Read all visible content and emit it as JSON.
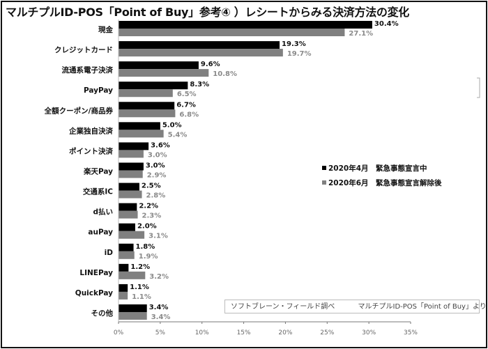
{
  "title": "マルチプルID-POS「Point of Buy」参考④ ）レシートからみる決済方法の変化",
  "source": {
    "left": "ソフトブレーン・フィールド調べ",
    "right": "マルチプルID-POS「Point of Buy」より"
  },
  "chart_data": {
    "type": "bar",
    "orientation": "horizontal",
    "title": "マルチプルID-POS「Point of Buy」参考④ ）レシートからみる決済方法の変化",
    "categories": [
      "現金",
      "クレジットカード",
      "流通系電子決済",
      "PayPay",
      "全額クーポン/商品券",
      "企業独自決済",
      "ポイント決済",
      "楽天Pay",
      "交通系IC",
      "d払い",
      "auPay",
      "iD",
      "LINEPay",
      "QuickPay",
      "その他"
    ],
    "series": [
      {
        "name": "2020年4月　緊急事態宣言中",
        "color": "#000000",
        "values": [
          30.4,
          19.3,
          9.6,
          8.3,
          6.7,
          5.0,
          3.6,
          3.0,
          2.5,
          2.2,
          2.0,
          1.8,
          1.2,
          1.1,
          3.4
        ],
        "labels": [
          "30.4%",
          "19.3%",
          "9.6%",
          "8.3%",
          "6.7%",
          "5.0%",
          "3.6%",
          "3.0%",
          "2.5%",
          "2.2%",
          "2.0%",
          "1.8%",
          "1.2%",
          "1.1%",
          "3.4%"
        ]
      },
      {
        "name": "2020年6月　緊急事態宣言解除後",
        "color": "#808080",
        "values": [
          27.1,
          19.7,
          10.8,
          6.5,
          6.8,
          5.4,
          3.0,
          2.9,
          2.8,
          2.3,
          3.1,
          1.9,
          3.2,
          1.1,
          3.4
        ],
        "labels": [
          "27.1%",
          "19.7%",
          "10.8%",
          "6.5%",
          "6.8%",
          "5.4%",
          "3.0%",
          "2.9%",
          "2.8%",
          "2.3%",
          "3.1%",
          "1.9%",
          "3.2%",
          "1.1%",
          "3.4%"
        ]
      }
    ],
    "xlim": [
      0,
      35
    ],
    "xticks": [
      "0%",
      "5%",
      "10%",
      "15%",
      "20%",
      "25%",
      "30%",
      "35%"
    ],
    "grid": false,
    "legend": "right-middle"
  }
}
